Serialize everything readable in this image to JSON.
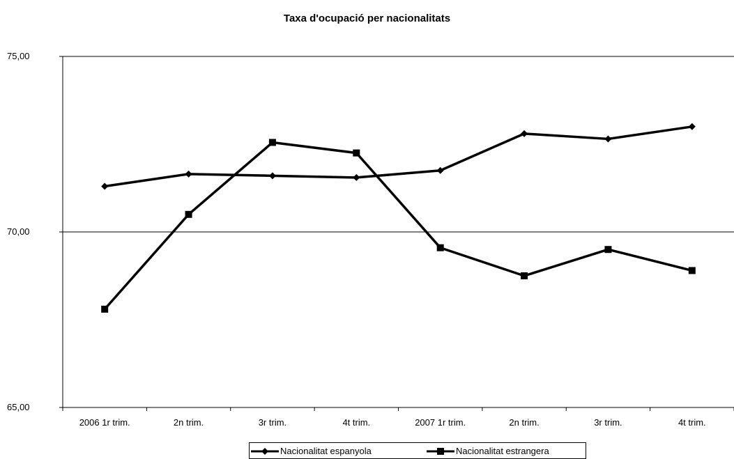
{
  "chart_data": {
    "type": "line",
    "title": "Taxa d'ocupació per nacionalitats",
    "categories": [
      "2006 1r trim.",
      "2n trim.",
      "3r trim.",
      "4t trim.",
      "2007 1r trim.",
      "2n trim.",
      "3r trim.",
      "4t trim."
    ],
    "series": [
      {
        "name": "Nacionalitat espanyola",
        "marker": "diamond",
        "color": "#000000",
        "values": [
          71.3,
          71.65,
          71.6,
          71.55,
          71.75,
          72.8,
          72.65,
          73.0
        ]
      },
      {
        "name": "Nacionalitat estrangera",
        "marker": "square",
        "color": "#000000",
        "values": [
          67.8,
          70.5,
          72.55,
          72.25,
          69.55,
          68.75,
          69.5,
          68.9
        ]
      }
    ],
    "ylim": [
      65,
      75
    ],
    "yticks": [
      "65,00",
      "70,00",
      "75,00"
    ],
    "xlabel": "",
    "ylabel": "",
    "grid": "horizontal at 70,00",
    "legend_position": "bottom"
  }
}
